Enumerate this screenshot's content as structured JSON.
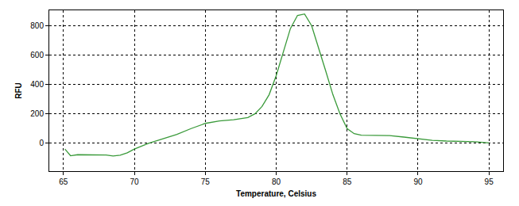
{
  "chart_data": {
    "type": "line",
    "x_label": "Temperature, Celsius",
    "y_label": "RFU",
    "x": [
      65.1,
      65.5,
      66,
      67,
      68,
      68.5,
      69,
      69.5,
      70,
      71,
      72,
      73,
      74,
      75,
      76,
      77,
      78,
      78.5,
      79,
      79.5,
      80,
      80.5,
      81,
      81.5,
      82,
      82.5,
      83,
      83.5,
      84,
      84.5,
      85,
      85.5,
      86,
      87,
      88,
      89,
      90,
      91,
      92,
      93,
      94,
      95
    ],
    "values": [
      -40,
      -85,
      -78,
      -78,
      -80,
      -87,
      -82,
      -65,
      -40,
      0,
      30,
      60,
      100,
      135,
      152,
      160,
      175,
      200,
      250,
      330,
      460,
      620,
      780,
      870,
      880,
      800,
      650,
      490,
      330,
      200,
      100,
      65,
      55,
      55,
      52,
      42,
      30,
      20,
      15,
      12,
      10,
      2
    ],
    "color": "#3a9a3a",
    "xlim": [
      64,
      96
    ],
    "xticks": [
      65,
      70,
      75,
      80,
      85,
      90,
      95
    ],
    "ylim": [
      -190,
      905
    ],
    "yticks": [
      0,
      200,
      400,
      600,
      800
    ],
    "grid": true
  }
}
